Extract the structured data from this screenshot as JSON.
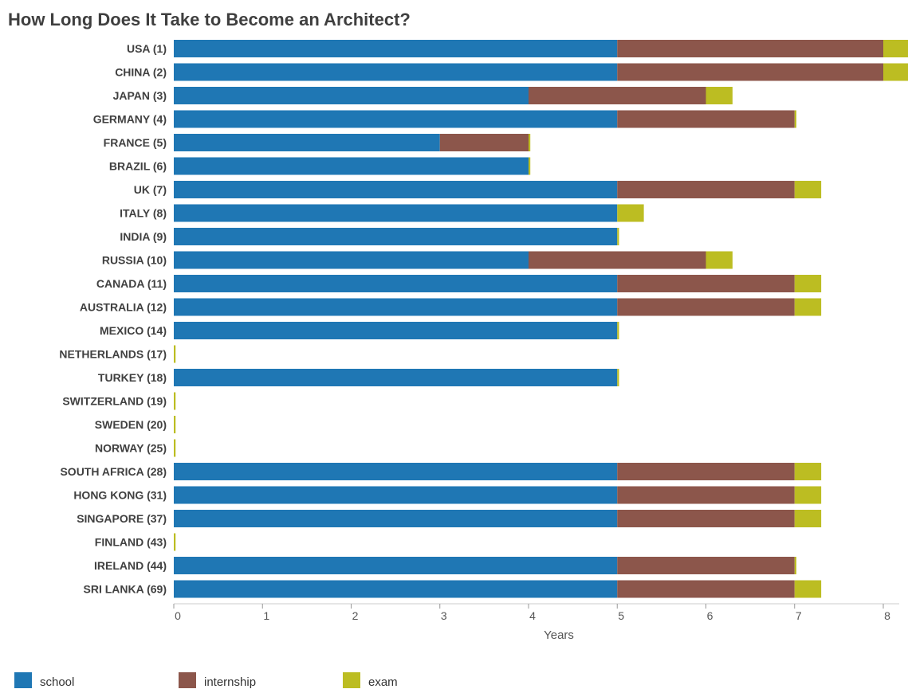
{
  "chart_data": {
    "type": "bar",
    "orientation": "horizontal",
    "stacked": true,
    "title": "How Long Does It Take to Become an Architect?",
    "xlabel": "Years",
    "ylabel": "",
    "xlim": [
      0,
      8
    ],
    "x_ticks": [
      "0",
      "1",
      "2",
      "3",
      "4",
      "5",
      "6",
      "7",
      "8"
    ],
    "grid": false,
    "legend_position": "bottom-left",
    "categories": [
      "USA (1)",
      "CHINA (2)",
      "JAPAN (3)",
      "GERMANY (4)",
      "FRANCE (5)",
      "BRAZIL (6)",
      "UK (7)",
      "ITALY (8)",
      "INDIA (9)",
      "RUSSIA (10)",
      "CANADA (11)",
      "AUSTRALIA (12)",
      "MEXICO (14)",
      "NETHERLANDS (17)",
      "TURKEY (18)",
      "SWITZERLAND (19)",
      "SWEDEN (20)",
      "NORWAY (25)",
      "SOUTH AFRICA (28)",
      "HONG KONG (31)",
      "SINGAPORE (37)",
      "FINLAND (43)",
      "IRELAND (44)",
      "SRI LANKA (69)"
    ],
    "series": [
      {
        "name": "school",
        "color": "#1f77b4",
        "values": [
          5,
          5,
          4,
          5,
          3,
          4,
          5,
          5,
          5,
          4,
          5,
          5,
          5,
          0,
          5,
          0,
          0,
          0,
          5,
          5,
          5,
          0,
          5,
          5
        ]
      },
      {
        "name": "internship",
        "color": "#8c564b",
        "values": [
          3,
          3,
          2,
          2,
          1,
          0,
          2,
          0,
          0,
          2,
          2,
          2,
          0,
          0,
          0,
          0,
          0,
          0,
          2,
          2,
          2,
          0,
          2,
          2
        ]
      },
      {
        "name": "exam",
        "color": "#bcbd22",
        "values": [
          0.3,
          0.3,
          0.3,
          0.02,
          0.02,
          0.02,
          0.3,
          0.3,
          0.02,
          0.3,
          0.3,
          0.3,
          0.02,
          0.02,
          0.02,
          0.02,
          0.02,
          0.02,
          0.3,
          0.3,
          0.3,
          0.02,
          0.02,
          0.3
        ]
      }
    ]
  }
}
